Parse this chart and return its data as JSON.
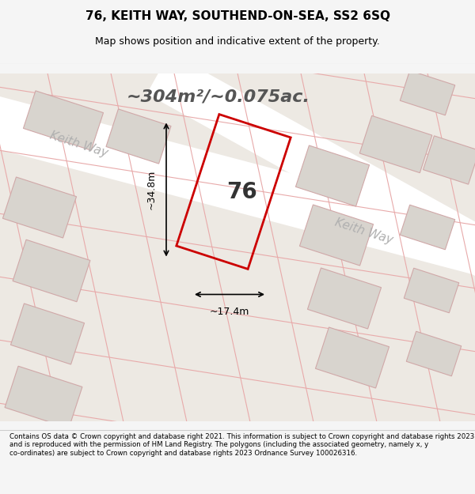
{
  "title_line1": "76, KEITH WAY, SOUTHEND-ON-SEA, SS2 6SQ",
  "title_line2": "Map shows position and indicative extent of the property.",
  "area_text": "~304m²/~0.075ac.",
  "label_number": "76",
  "dim_width": "~17.4m",
  "dim_height": "~34.8m",
  "road_label1": "Keith Way",
  "road_label2": "Keith Way",
  "footer_text": "Contains OS data © Crown copyright and database right 2021. This information is subject to Crown copyright and database rights 2023 and is reproduced with the permission of HM Land Registry. The polygons (including the associated geometry, namely x, y co-ordinates) are subject to Crown copyright and database rights 2023 Ordnance Survey 100026316.",
  "bg_color": "#f0ede8",
  "map_bg": "#e8e4de",
  "building_fill": "#d4d0ca",
  "building_edge": "#c8a8a8",
  "highlight_fill": "none",
  "highlight_edge": "#cc0000",
  "road_color": "#ffffff",
  "road_label_color": "#aaaaaa",
  "grid_line_color": "#e8b0b0",
  "title_color": "#000000",
  "footer_color": "#000000",
  "dim_color": "#000000"
}
